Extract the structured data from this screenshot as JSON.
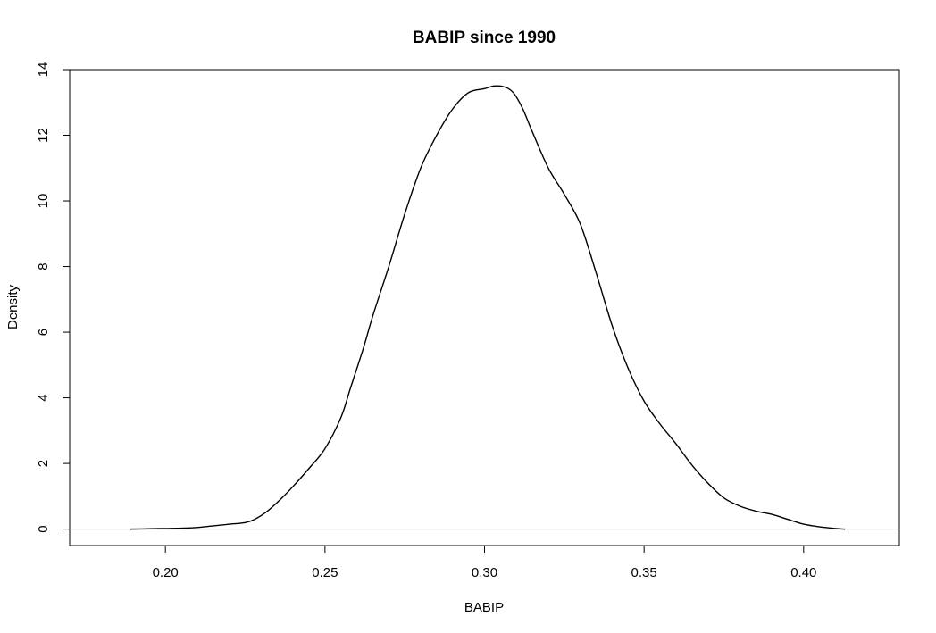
{
  "chart_data": {
    "type": "line",
    "title": "BABIP since 1990",
    "xlabel": "BABIP",
    "ylabel": "Density",
    "xlim": [
      0.17,
      0.43
    ],
    "ylim": [
      -0.5,
      14.0
    ],
    "xticks": [
      0.2,
      0.25,
      0.3,
      0.35,
      0.4
    ],
    "xtick_labels": [
      "0.20",
      "0.25",
      "0.30",
      "0.35",
      "0.40"
    ],
    "yticks": [
      0,
      2,
      4,
      6,
      8,
      10,
      12,
      14
    ],
    "ytick_labels": [
      "0",
      "2",
      "4",
      "6",
      "8",
      "10",
      "12",
      "14"
    ],
    "grid": false,
    "baseline": 0,
    "colors": {
      "line": "#000000",
      "baseline": "#bebebe",
      "frame": "#000000"
    },
    "series": [
      {
        "x": [
          0.189,
          0.195,
          0.2,
          0.205,
          0.21,
          0.215,
          0.22,
          0.225,
          0.228,
          0.232,
          0.236,
          0.24,
          0.245,
          0.25,
          0.255,
          0.258,
          0.262,
          0.265,
          0.27,
          0.275,
          0.28,
          0.285,
          0.29,
          0.295,
          0.3,
          0.303,
          0.306,
          0.309,
          0.312,
          0.315,
          0.32,
          0.325,
          0.33,
          0.335,
          0.34,
          0.345,
          0.35,
          0.355,
          0.36,
          0.365,
          0.37,
          0.375,
          0.38,
          0.385,
          0.39,
          0.395,
          0.4,
          0.405,
          0.41,
          0.413
        ],
        "y": [
          0.0,
          0.01,
          0.02,
          0.03,
          0.05,
          0.1,
          0.15,
          0.2,
          0.3,
          0.55,
          0.9,
          1.3,
          1.85,
          2.45,
          3.4,
          4.3,
          5.5,
          6.5,
          8.0,
          9.6,
          11.0,
          12.0,
          12.8,
          13.3,
          13.42,
          13.5,
          13.48,
          13.3,
          12.8,
          12.1,
          11.0,
          10.2,
          9.3,
          7.8,
          6.2,
          4.9,
          3.9,
          3.2,
          2.6,
          1.95,
          1.4,
          0.95,
          0.7,
          0.55,
          0.45,
          0.3,
          0.15,
          0.07,
          0.02,
          0.0
        ]
      }
    ]
  }
}
